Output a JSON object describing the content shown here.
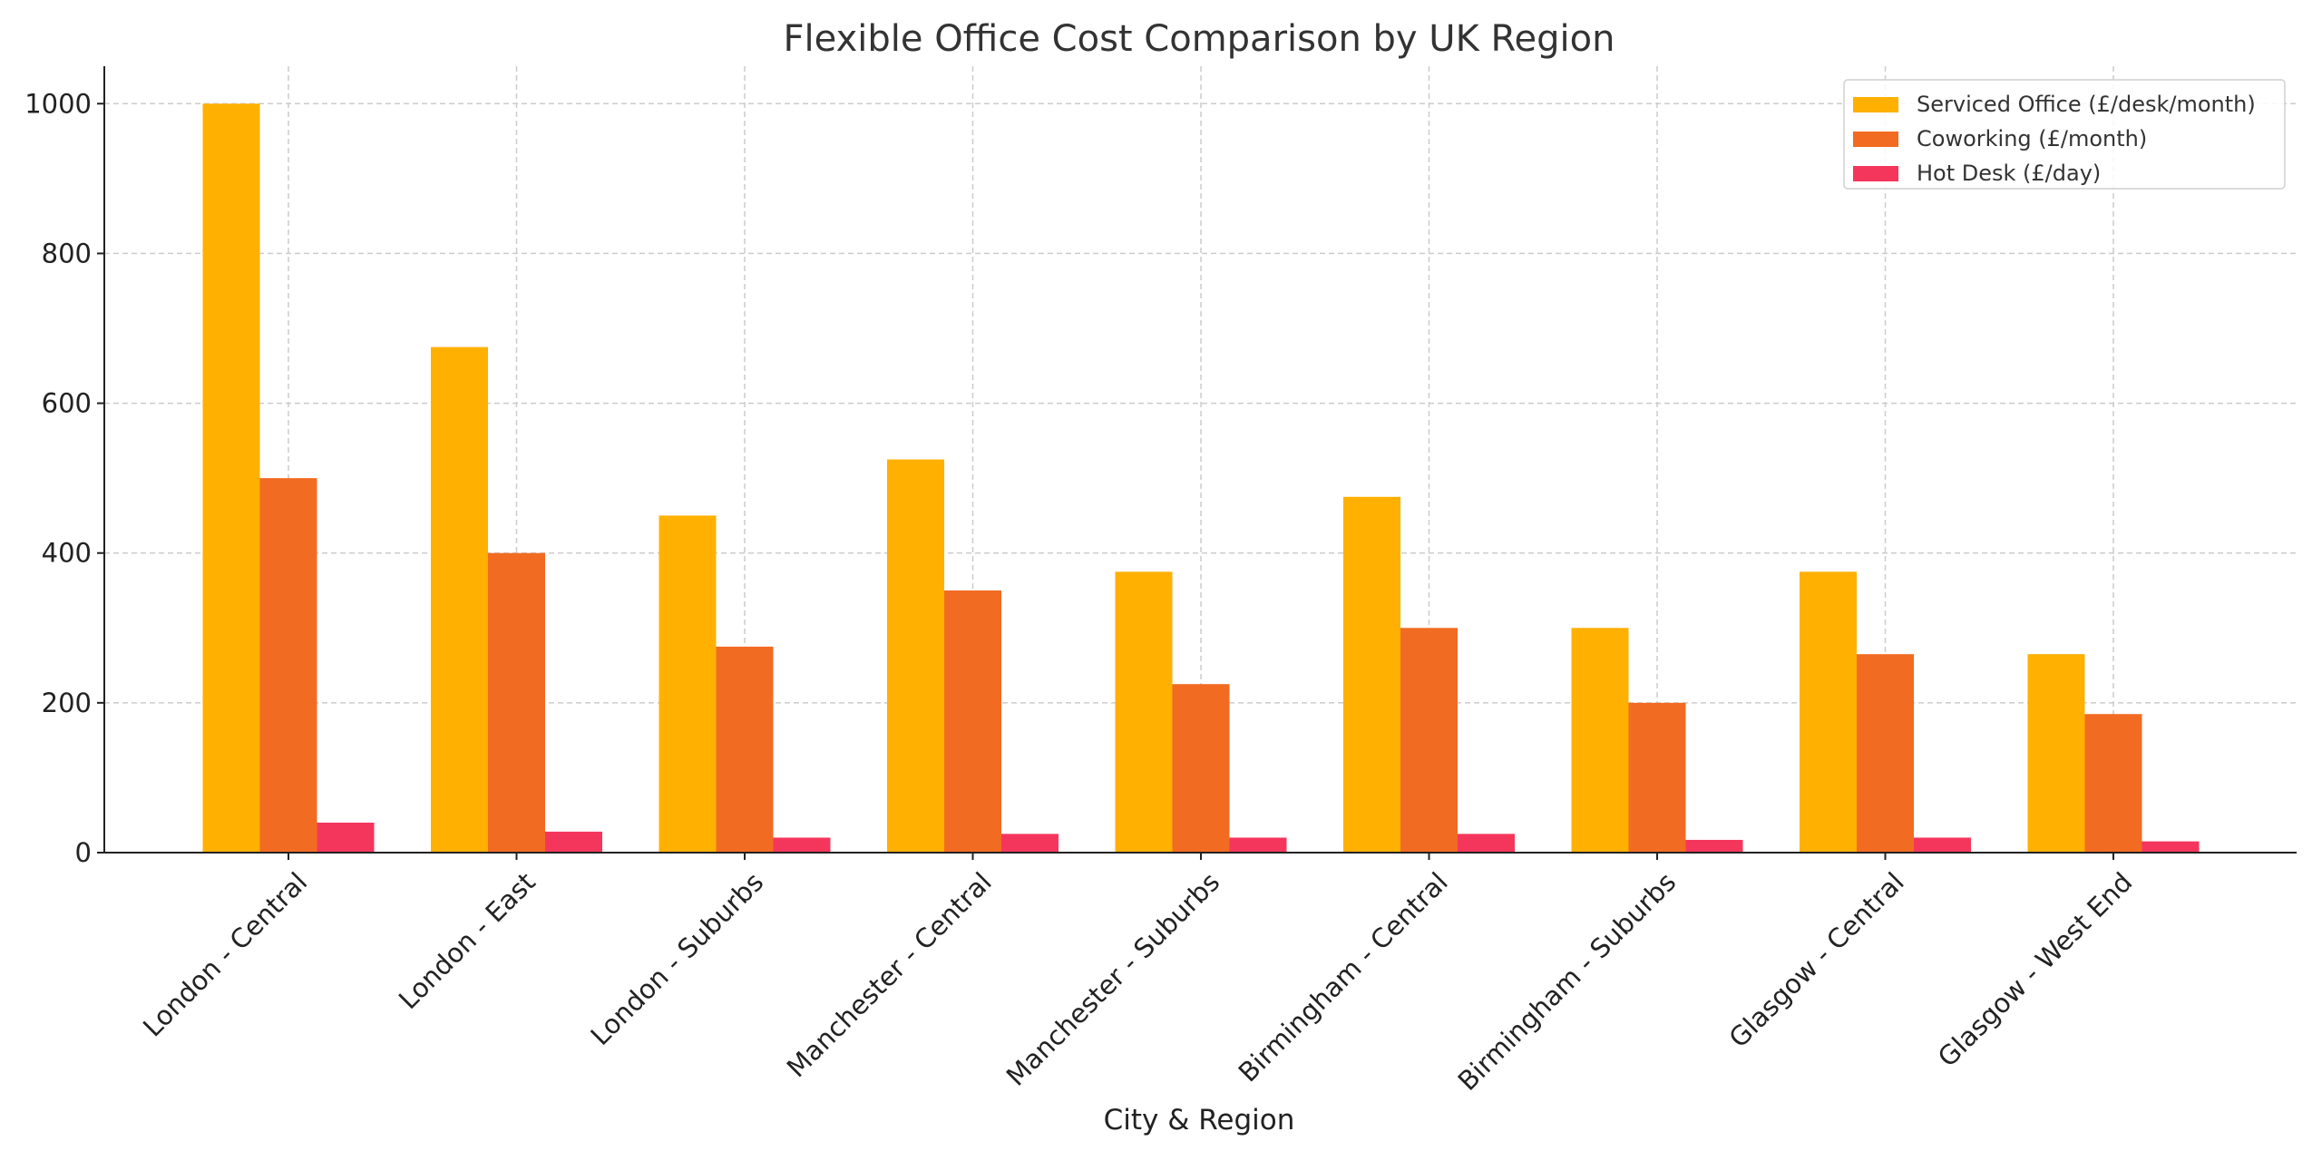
{
  "chart_data": {
    "type": "bar",
    "title": "Flexible Office Cost Comparison by UK Region",
    "xlabel": "City & Region",
    "ylabel": "",
    "ylim": [
      0,
      1050
    ],
    "yticks": [
      0,
      200,
      400,
      600,
      800,
      1000
    ],
    "grid": true,
    "legend_position": "top-right",
    "categories": [
      "London - Central",
      "London - East",
      "London - Suburbs",
      "Manchester - Central",
      "Manchester - Suburbs",
      "Birmingham - Central",
      "Birmingham - Suburbs",
      "Glasgow - Central",
      "Glasgow - West End"
    ],
    "series": [
      {
        "name": "Serviced Office (£/desk/month)",
        "color": "#FFB000",
        "values": [
          1000,
          675,
          450,
          525,
          375,
          475,
          300,
          375,
          265
        ]
      },
      {
        "name": "Coworking (£/month)",
        "color": "#F26B22",
        "values": [
          500,
          400,
          275,
          350,
          225,
          300,
          200,
          265,
          185
        ]
      },
      {
        "name": "Hot Desk (£/day)",
        "color": "#F5365C",
        "values": [
          40,
          28,
          20,
          25,
          20,
          25,
          17,
          20,
          15
        ]
      }
    ]
  }
}
